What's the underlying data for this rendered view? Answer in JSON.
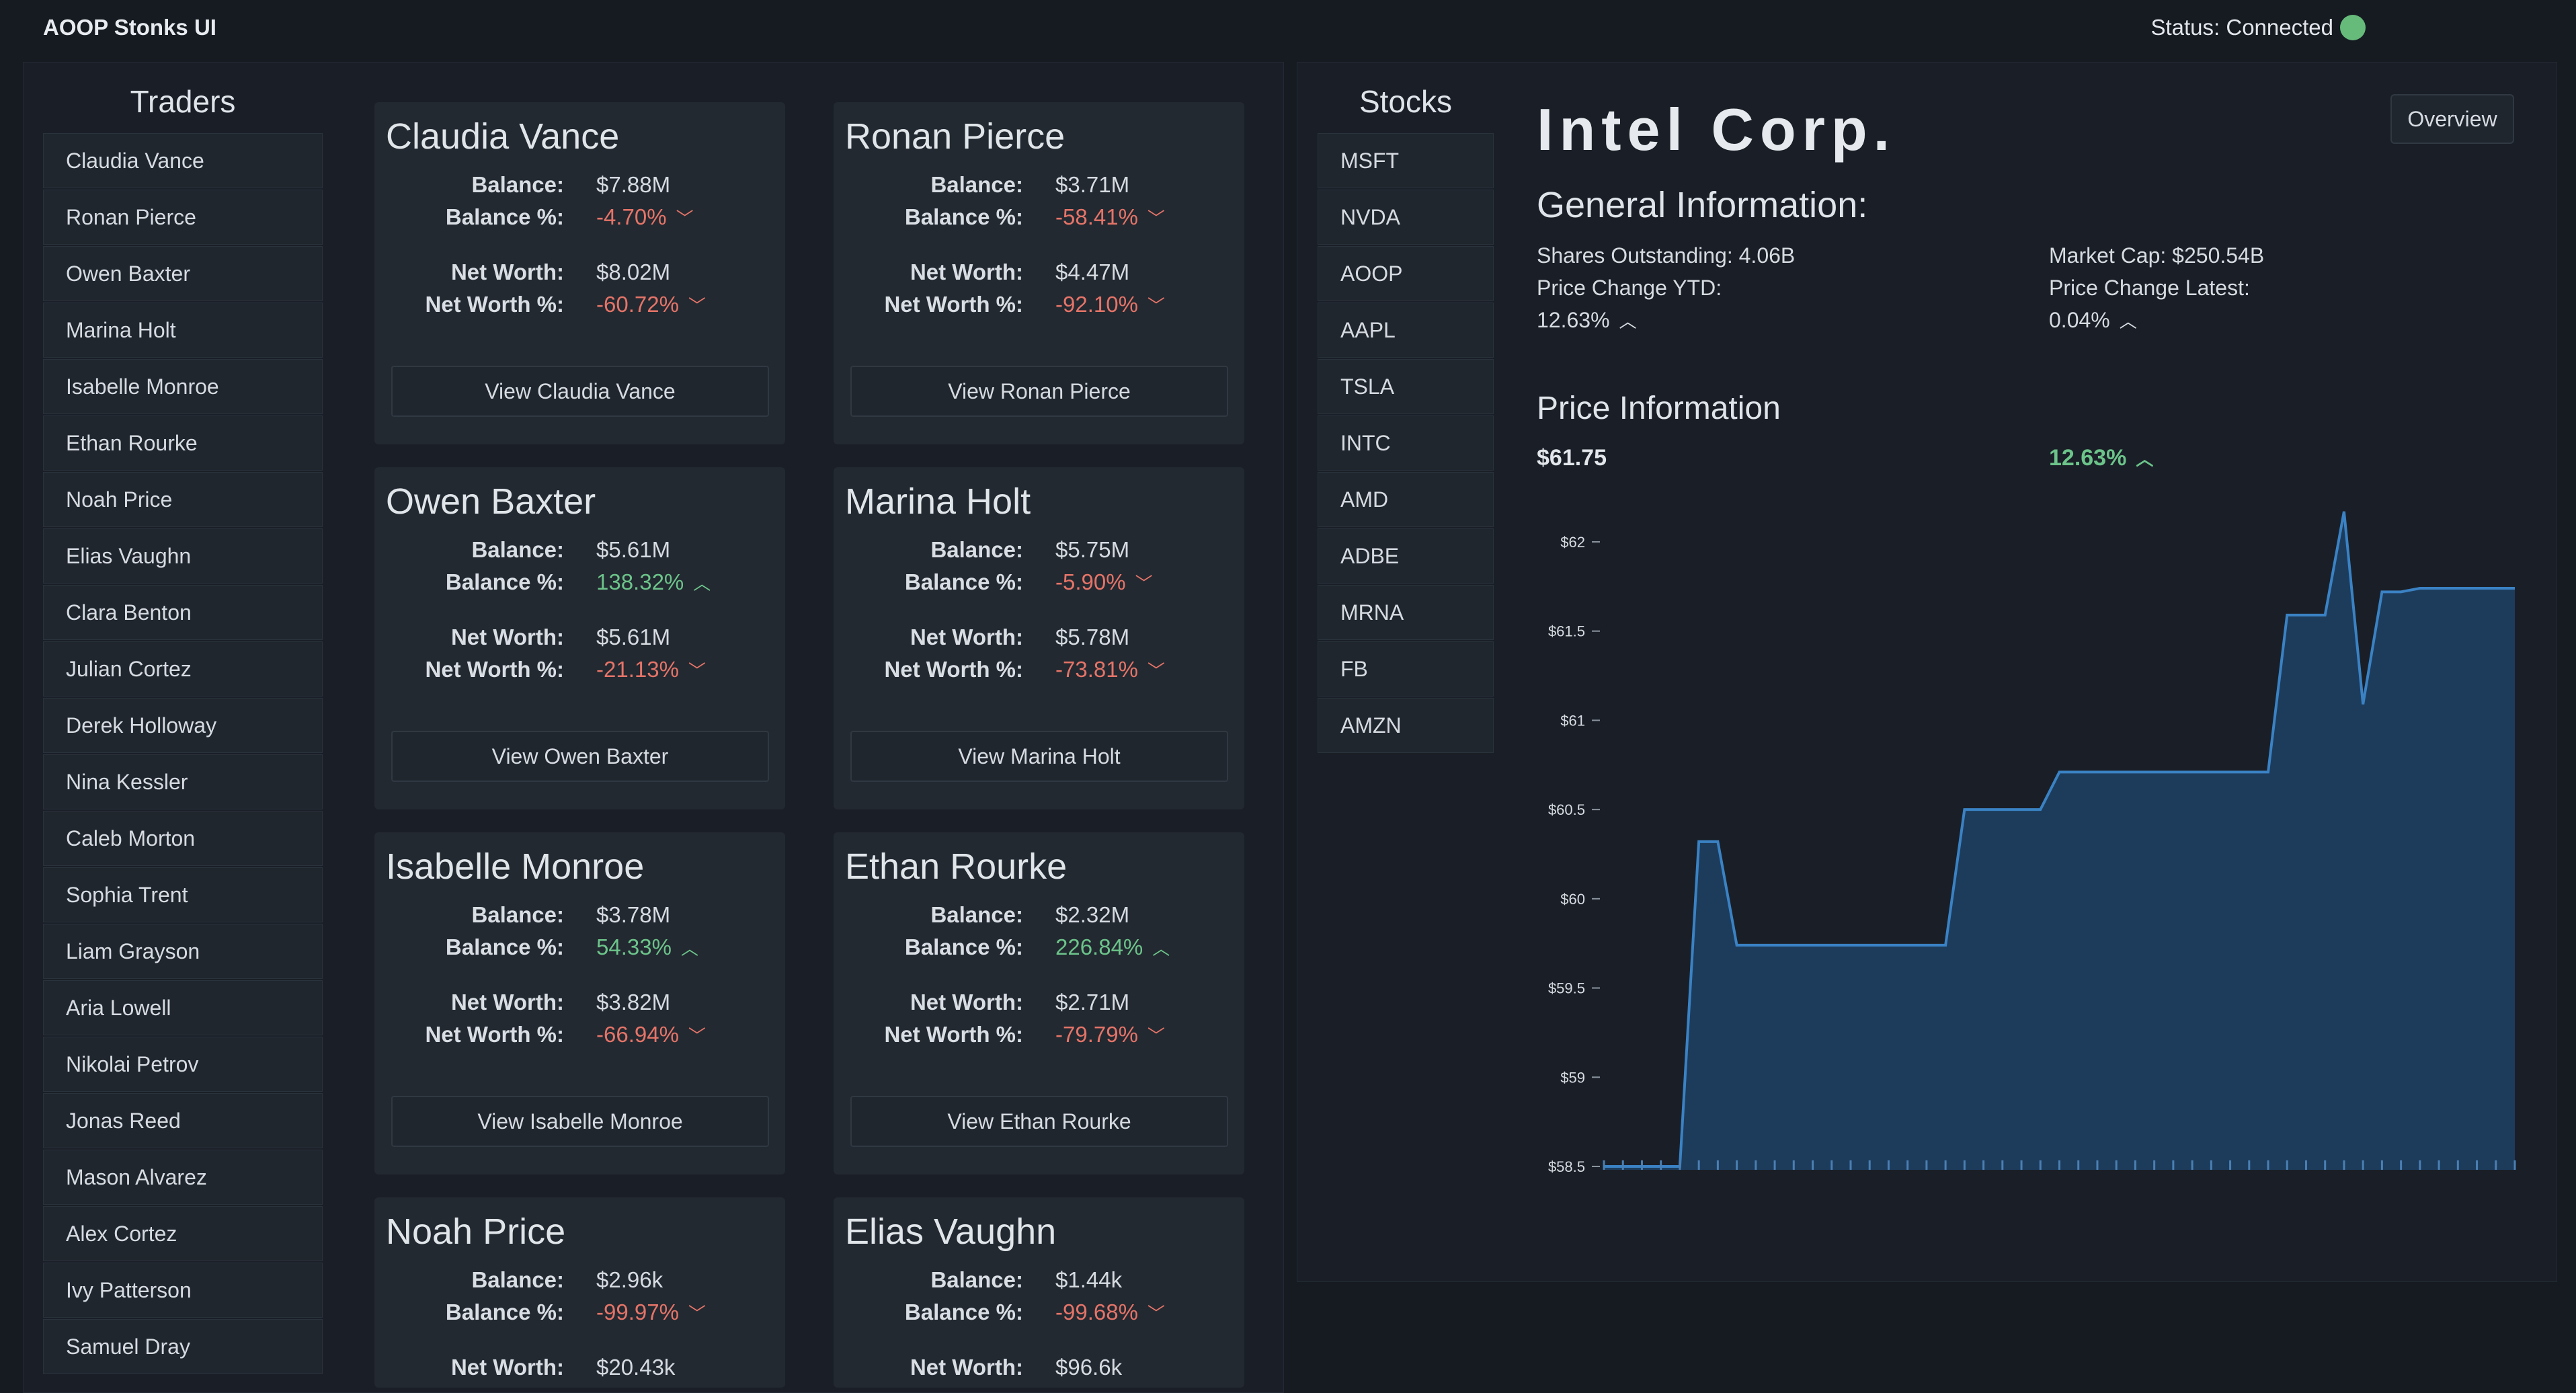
{
  "app": {
    "title": "AOOP Stonks UI",
    "status_label": "Status: Connected",
    "status_color": "#66bb7a"
  },
  "traders": {
    "heading": "Traders",
    "list": [
      "Claudia Vance",
      "Ronan Pierce",
      "Owen Baxter",
      "Marina Holt",
      "Isabelle Monroe",
      "Ethan Rourke",
      "Noah Price",
      "Elias Vaughn",
      "Clara Benton",
      "Julian Cortez",
      "Derek Holloway",
      "Nina Kessler",
      "Caleb Morton",
      "Sophia Trent",
      "Liam Grayson",
      "Aria Lowell",
      "Nikolai Petrov",
      "Jonas Reed",
      "Mason Alvarez",
      "Alex Cortez",
      "Ivy Patterson",
      "Samuel Dray"
    ]
  },
  "labels": {
    "balance": "Balance:",
    "balance_pct": "Balance %:",
    "net_worth": "Net Worth:",
    "net_worth_pct": "Net Worth %:"
  },
  "cards": [
    {
      "name": "Claudia Vance",
      "balance": "$7.88M",
      "balance_pct": "-4.70%",
      "balance_dir": "down",
      "net_worth": "$8.02M",
      "net_worth_pct": "-60.72%",
      "net_worth_dir": "down",
      "button": "View Claudia Vance"
    },
    {
      "name": "Ronan Pierce",
      "balance": "$3.71M",
      "balance_pct": "-58.41%",
      "balance_dir": "down",
      "net_worth": "$4.47M",
      "net_worth_pct": "-92.10%",
      "net_worth_dir": "down",
      "button": "View Ronan Pierce"
    },
    {
      "name": "Owen Baxter",
      "balance": "$5.61M",
      "balance_pct": "138.32%",
      "balance_dir": "up",
      "net_worth": "$5.61M",
      "net_worth_pct": "-21.13%",
      "net_worth_dir": "down",
      "button": "View Owen Baxter"
    },
    {
      "name": "Marina Holt",
      "balance": "$5.75M",
      "balance_pct": "-5.90%",
      "balance_dir": "down",
      "net_worth": "$5.78M",
      "net_worth_pct": "-73.81%",
      "net_worth_dir": "down",
      "button": "View Marina Holt"
    },
    {
      "name": "Isabelle Monroe",
      "balance": "$3.78M",
      "balance_pct": "54.33%",
      "balance_dir": "up",
      "net_worth": "$3.82M",
      "net_worth_pct": "-66.94%",
      "net_worth_dir": "down",
      "button": "View Isabelle Monroe"
    },
    {
      "name": "Ethan Rourke",
      "balance": "$2.32M",
      "balance_pct": "226.84%",
      "balance_dir": "up",
      "net_worth": "$2.71M",
      "net_worth_pct": "-79.79%",
      "net_worth_dir": "down",
      "button": "View Ethan Rourke"
    },
    {
      "name": "Noah Price",
      "balance": "$2.96k",
      "balance_pct": "-99.97%",
      "balance_dir": "down",
      "net_worth": "$20.43k",
      "net_worth_pct": "",
      "net_worth_dir": "",
      "button": ""
    },
    {
      "name": "Elias Vaughn",
      "balance": "$1.44k",
      "balance_pct": "-99.68%",
      "balance_dir": "down",
      "net_worth": "$96.6k",
      "net_worth_pct": "",
      "net_worth_dir": "",
      "button": ""
    }
  ],
  "stocks": {
    "heading": "Stocks",
    "list": [
      "MSFT",
      "NVDA",
      "AOOP",
      "AAPL",
      "TSLA",
      "INTC",
      "AMD",
      "ADBE",
      "MRNA",
      "FB",
      "AMZN"
    ]
  },
  "company": {
    "title": "Intel Corp.",
    "overview_button": "Overview",
    "general_heading": "General Information:",
    "shares_outstanding": "Shares Outstanding: 4.06B",
    "market_cap": "Market Cap: $250.54B",
    "price_change_ytd_label": "Price Change YTD:",
    "price_change_ytd": "12.63%",
    "price_change_latest_label": "Price Change Latest:",
    "price_change_latest": "0.04%",
    "price_heading": "Price Information",
    "price": "$61.75",
    "price_change": "12.63%"
  },
  "colors": {
    "positive": "#6cc48a",
    "negative": "#e57468",
    "chart_line": "#3a82c4",
    "chart_fill": "#1d3c5c"
  },
  "chart_data": {
    "type": "area",
    "ytick_labels": [
      "$58.5",
      "$59",
      "$59.5",
      "$60",
      "$60.5",
      "$61",
      "$61.5",
      "$62"
    ],
    "ylim": [
      58.5,
      62
    ],
    "x": [
      0,
      1,
      2,
      3,
      4,
      5,
      6,
      7,
      8,
      9,
      10,
      11,
      12,
      13,
      14,
      15,
      16,
      17,
      18,
      19,
      20,
      21,
      22,
      23,
      24,
      25,
      26,
      27,
      28,
      29,
      30,
      31,
      32,
      33,
      34,
      35,
      36,
      37,
      38,
      39,
      40,
      41,
      42,
      43,
      44,
      45,
      46,
      47,
      48
    ],
    "values": [
      58.5,
      58.5,
      58.5,
      58.5,
      58.5,
      60.32,
      60.32,
      59.74,
      59.74,
      59.74,
      59.74,
      59.74,
      59.74,
      59.74,
      59.74,
      59.74,
      59.74,
      59.74,
      59.74,
      60.5,
      60.5,
      60.5,
      60.5,
      60.5,
      60.71,
      60.71,
      60.71,
      60.71,
      60.71,
      60.71,
      60.71,
      60.71,
      60.71,
      60.71,
      60.71,
      60.71,
      61.59,
      61.59,
      61.59,
      62.17,
      61.09,
      61.72,
      61.72,
      61.74,
      61.74,
      61.74,
      61.74,
      61.74,
      61.74
    ]
  }
}
